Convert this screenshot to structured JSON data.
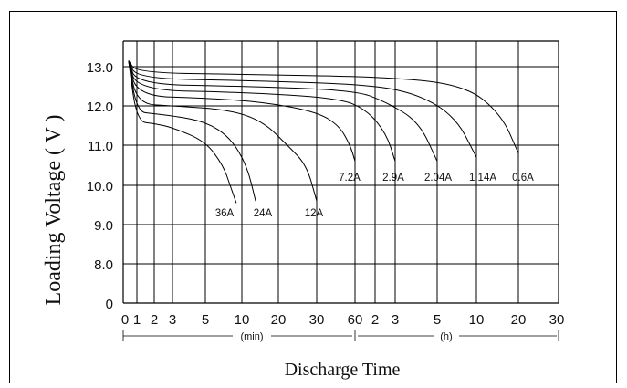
{
  "chart_data": {
    "type": "line",
    "ylabel": "Loading Voltage ( V )",
    "xlabel": "Discharge Time",
    "x_scale": "log",
    "x_unit_labels": [
      "(min)",
      "(h)"
    ],
    "y_ticks": [
      "13.0",
      "12.0",
      "11.0",
      "10.0",
      "9.0",
      "8.0",
      "0"
    ],
    "x_ticks_min": [
      "0",
      "1",
      "2",
      "3",
      "5",
      "10",
      "20",
      "30",
      "60"
    ],
    "x_ticks_h": [
      "2",
      "3",
      "5",
      "10",
      "20",
      "30"
    ],
    "series": [
      {
        "name": "36A",
        "points": [
          [
            0.3,
            13.15
          ],
          [
            1,
            11.6
          ],
          [
            2,
            11.55
          ],
          [
            3,
            11.45
          ],
          [
            5,
            11.1
          ],
          [
            7,
            10.5
          ],
          [
            8,
            10.0
          ],
          [
            9,
            9.55
          ]
        ]
      },
      {
        "name": "24A",
        "points": [
          [
            0.3,
            13.15
          ],
          [
            1,
            11.85
          ],
          [
            2,
            11.8
          ],
          [
            3,
            11.75
          ],
          [
            5,
            11.6
          ],
          [
            8,
            11.2
          ],
          [
            11,
            10.5
          ],
          [
            13,
            9.6
          ]
        ]
      },
      {
        "name": "12A",
        "points": [
          [
            0.3,
            13.15
          ],
          [
            1,
            12.05
          ],
          [
            3,
            12.0
          ],
          [
            8,
            11.9
          ],
          [
            15,
            11.6
          ],
          [
            22,
            11.0
          ],
          [
            27,
            10.5
          ],
          [
            30,
            9.6
          ]
        ]
      },
      {
        "name": "7.2A",
        "points": [
          [
            0.3,
            13.15
          ],
          [
            1,
            12.25
          ],
          [
            5,
            12.2
          ],
          [
            15,
            12.1
          ],
          [
            30,
            11.85
          ],
          [
            45,
            11.5
          ],
          [
            55,
            11.0
          ],
          [
            60,
            10.6
          ]
        ]
      },
      {
        "name": "2.9A",
        "points": [
          [
            0.3,
            13.15
          ],
          [
            1,
            12.4
          ],
          [
            10,
            12.35
          ],
          [
            45,
            12.2
          ],
          [
            90,
            11.9
          ],
          [
            150,
            11.3
          ],
          [
            180,
            10.6
          ]
        ]
      },
      {
        "name": "2.04A",
        "points": [
          [
            0.3,
            13.15
          ],
          [
            1,
            12.55
          ],
          [
            10,
            12.5
          ],
          [
            60,
            12.4
          ],
          [
            150,
            12.1
          ],
          [
            240,
            11.6
          ],
          [
            300,
            10.6
          ]
        ]
      },
      {
        "name": "1.14A",
        "points": [
          [
            0.3,
            13.15
          ],
          [
            1,
            12.7
          ],
          [
            10,
            12.65
          ],
          [
            90,
            12.55
          ],
          [
            240,
            12.3
          ],
          [
            420,
            11.7
          ],
          [
            600,
            10.7
          ]
        ]
      },
      {
        "name": "0.6A",
        "points": [
          [
            0.3,
            13.15
          ],
          [
            1,
            12.85
          ],
          [
            10,
            12.8
          ],
          [
            120,
            12.75
          ],
          [
            480,
            12.55
          ],
          [
            900,
            11.8
          ],
          [
            1200,
            10.8
          ]
        ]
      }
    ],
    "grid": true
  }
}
